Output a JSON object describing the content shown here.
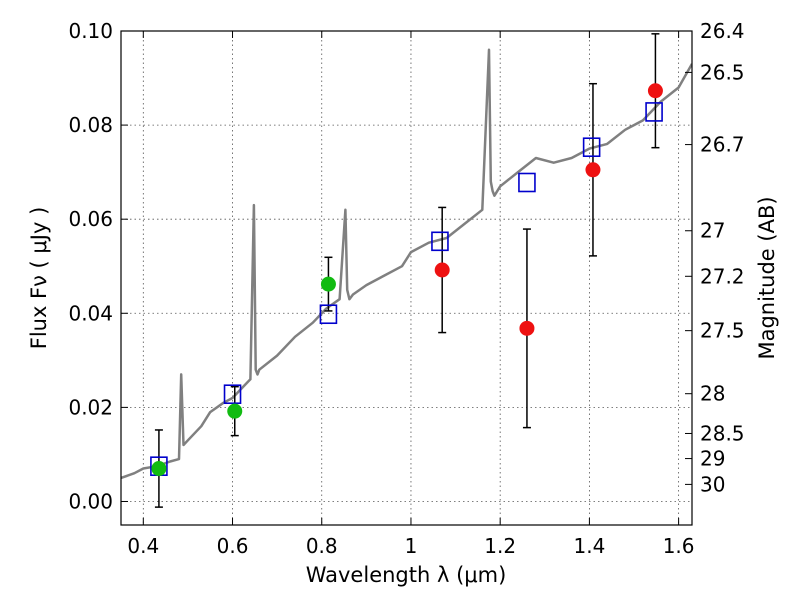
{
  "chart_data": {
    "type": "scatter",
    "xlabel": "Wavelength  λ (μm)",
    "ylabel": "Flux  Fν  ( μJy )",
    "y2label": "Magnitude (AB)",
    "xlim": [
      0.35,
      1.63
    ],
    "ylim": [
      -0.005,
      0.1
    ],
    "grid": true,
    "x_ticks": [
      0.4,
      0.6,
      0.8,
      1.0,
      1.2,
      1.4,
      1.6
    ],
    "x_tick_labels": [
      "0.4",
      "0.6",
      "0.8",
      "1",
      "1.2",
      "1.4",
      "1.6"
    ],
    "y_ticks": [
      0.0,
      0.02,
      0.04,
      0.06,
      0.08,
      0.1
    ],
    "y_tick_labels": [
      "0.00",
      "0.02",
      "0.04",
      "0.06",
      "0.08",
      "0.10"
    ],
    "mag_ticks": [
      "26.4",
      "26.5",
      "26.7",
      "27",
      "27.2",
      "27.5",
      "28",
      "28.5",
      "29",
      "30"
    ],
    "colors": {
      "model": "#808080",
      "model_photometry": "#0000cc",
      "optical_detections": "#11bb11",
      "nir_detections": "#ee1111",
      "error_bars": "#000000"
    },
    "series": [
      {
        "marker": "line",
        "x": [
          0.35,
          0.38,
          0.4,
          0.43,
          0.46,
          0.48,
          0.485,
          0.49,
          0.5,
          0.53,
          0.55,
          0.58,
          0.6,
          0.62,
          0.64,
          0.648,
          0.652,
          0.656,
          0.66,
          0.7,
          0.74,
          0.78,
          0.81,
          0.84,
          0.853,
          0.857,
          0.862,
          0.87,
          0.9,
          0.94,
          0.98,
          1.0,
          1.04,
          1.08,
          1.12,
          1.16,
          1.175,
          1.179,
          1.183,
          1.187,
          1.2,
          1.24,
          1.28,
          1.32,
          1.36,
          1.4,
          1.44,
          1.48,
          1.52,
          1.56,
          1.6,
          1.63
        ],
        "y": [
          0.005,
          0.006,
          0.007,
          0.0075,
          0.0085,
          0.009,
          0.027,
          0.012,
          0.013,
          0.016,
          0.019,
          0.021,
          0.022,
          0.024,
          0.026,
          0.063,
          0.028,
          0.027,
          0.028,
          0.031,
          0.035,
          0.038,
          0.041,
          0.043,
          0.062,
          0.045,
          0.043,
          0.044,
          0.046,
          0.048,
          0.05,
          0.053,
          0.055,
          0.056,
          0.059,
          0.062,
          0.096,
          0.068,
          0.066,
          0.065,
          0.067,
          0.07,
          0.073,
          0.072,
          0.073,
          0.075,
          0.076,
          0.079,
          0.081,
          0.085,
          0.088,
          0.093
        ]
      },
      {
        "marker": "open-square",
        "x": [
          0.435,
          0.6,
          0.815,
          1.065,
          1.26,
          1.405,
          1.545
        ],
        "y": [
          0.0075,
          0.0228,
          0.0398,
          0.0553,
          0.0678,
          0.0753,
          0.0828
        ]
      },
      {
        "marker": "circle",
        "x": [
          0.435,
          0.605,
          0.815
        ],
        "y": [
          0.007,
          0.0192,
          0.0462
        ],
        "yerr": [
          0.0082,
          0.0052,
          0.0057
        ]
      },
      {
        "marker": "circle",
        "x": [
          1.07,
          1.26,
          1.408,
          1.548
        ],
        "y": [
          0.0492,
          0.0368,
          0.0705,
          0.0873
        ],
        "yerr": [
          0.0133,
          0.0211,
          0.0183,
          0.0121
        ]
      }
    ]
  }
}
